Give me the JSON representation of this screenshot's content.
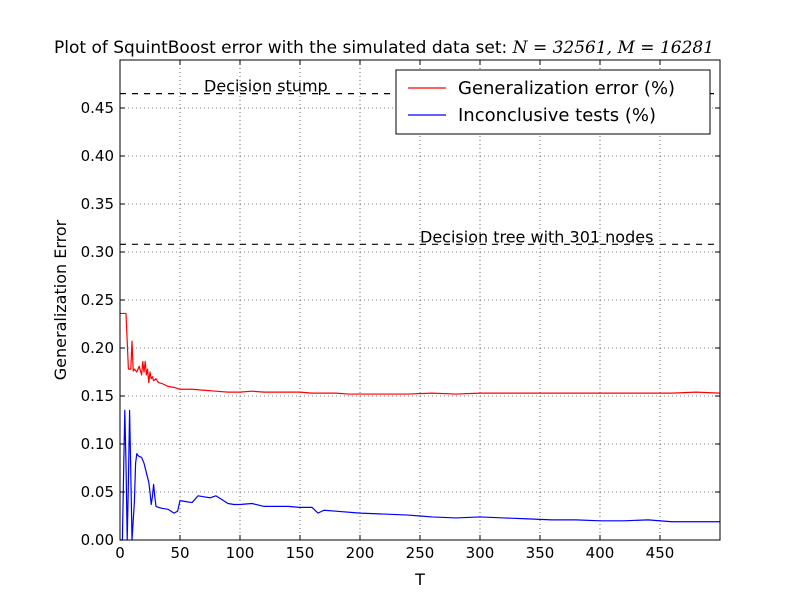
{
  "chart_data": {
    "type": "line",
    "title": "Plot of SquintBoost error with the simulated data set: ",
    "title_math": "N = 32561, M = 16281",
    "xlabel": "T",
    "ylabel": "Generalization Error",
    "xlim": [
      0,
      500
    ],
    "ylim": [
      0,
      0.5
    ],
    "x_ticks": [
      0,
      50,
      100,
      150,
      200,
      250,
      300,
      350,
      400,
      450
    ],
    "x_tick_labels": [
      "0",
      "50",
      "100",
      "150",
      "200",
      "250",
      "300",
      "350",
      "400",
      "450"
    ],
    "y_ticks": [
      0,
      0.05,
      0.1,
      0.15,
      0.2,
      0.25,
      0.3,
      0.35,
      0.4,
      0.45
    ],
    "y_tick_labels": [
      "0.00",
      "0.05",
      "0.10",
      "0.15",
      "0.20",
      "0.25",
      "0.30",
      "0.35",
      "0.40",
      "0.45"
    ],
    "grid": true,
    "grid_style": "dotted",
    "legend_position": "top-right",
    "series": [
      {
        "name": "Generalization error (%)",
        "color": "#ff0000",
        "x": [
          0,
          3,
          5,
          7,
          9,
          10,
          11,
          12,
          14,
          16,
          18,
          19,
          20,
          21,
          22,
          23,
          24,
          25,
          26,
          27,
          28,
          30,
          32,
          35,
          40,
          45,
          50,
          60,
          70,
          80,
          90,
          100,
          110,
          120,
          130,
          140,
          150,
          160,
          170,
          180,
          190,
          200,
          220,
          240,
          260,
          280,
          300,
          320,
          340,
          360,
          380,
          400,
          420,
          440,
          460,
          480,
          500
        ],
        "values": [
          0.236,
          0.236,
          0.236,
          0.178,
          0.178,
          0.207,
          0.176,
          0.178,
          0.175,
          0.181,
          0.172,
          0.186,
          0.175,
          0.186,
          0.172,
          0.178,
          0.164,
          0.175,
          0.168,
          0.17,
          0.166,
          0.168,
          0.164,
          0.163,
          0.16,
          0.159,
          0.157,
          0.157,
          0.156,
          0.155,
          0.154,
          0.154,
          0.155,
          0.154,
          0.154,
          0.154,
          0.154,
          0.153,
          0.153,
          0.153,
          0.152,
          0.152,
          0.152,
          0.152,
          0.153,
          0.152,
          0.153,
          0.153,
          0.153,
          0.153,
          0.153,
          0.153,
          0.153,
          0.153,
          0.153,
          0.154,
          0.153
        ]
      },
      {
        "name": "Inconclusive tests (%)",
        "color": "#0000ff",
        "x": [
          0,
          2,
          3,
          4,
          5,
          6,
          7,
          8,
          9,
          10,
          11,
          12,
          13,
          14,
          15,
          16,
          18,
          20,
          22,
          24,
          25,
          26,
          27,
          28,
          29,
          30,
          32,
          35,
          40,
          45,
          48,
          50,
          55,
          60,
          65,
          70,
          75,
          80,
          85,
          90,
          95,
          100,
          110,
          120,
          130,
          140,
          150,
          160,
          165,
          170,
          180,
          200,
          220,
          240,
          250,
          260,
          280,
          300,
          320,
          340,
          360,
          380,
          400,
          420,
          440,
          460,
          480,
          500
        ],
        "values": [
          0,
          0,
          0.07,
          0.135,
          0.08,
          0,
          0.06,
          0.135,
          0.07,
          0,
          0.02,
          0.04,
          0.08,
          0.09,
          0.088,
          0.087,
          0.086,
          0.08,
          0.07,
          0.06,
          0.05,
          0.037,
          0.045,
          0.058,
          0.045,
          0.035,
          0.034,
          0.033,
          0.032,
          0.028,
          0.03,
          0.041,
          0.04,
          0.039,
          0.046,
          0.045,
          0.044,
          0.046,
          0.042,
          0.038,
          0.037,
          0.037,
          0.038,
          0.035,
          0.035,
          0.035,
          0.034,
          0.034,
          0.028,
          0.031,
          0.03,
          0.028,
          0.027,
          0.026,
          0.025,
          0.024,
          0.023,
          0.024,
          0.023,
          0.022,
          0.021,
          0.021,
          0.02,
          0.02,
          0.021,
          0.019,
          0.019,
          0.019
        ]
      }
    ],
    "reference_lines": [
      {
        "label": "Decision stump",
        "y": 0.465,
        "label_x": 70
      },
      {
        "label": "Decision tree with 301 nodes",
        "y": 0.308,
        "label_x": 250
      }
    ]
  }
}
